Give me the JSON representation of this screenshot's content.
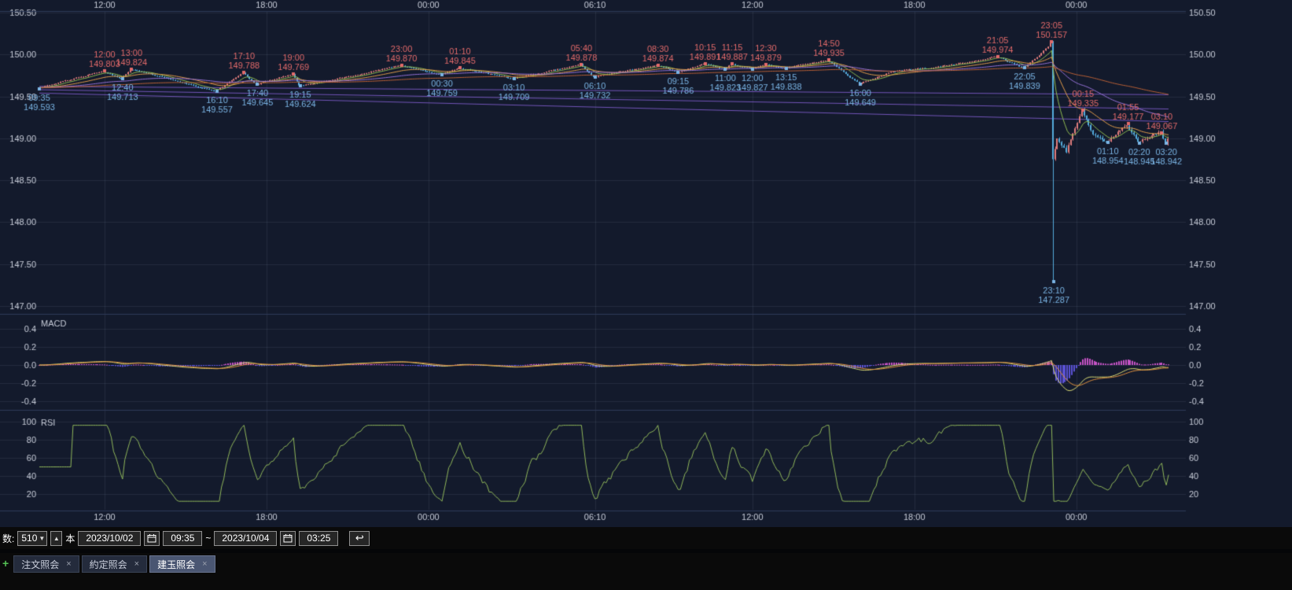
{
  "colors": {
    "bg": "#131a2c",
    "grid": "rgba(180,195,230,0.10)",
    "separator": "#2e3a58",
    "axis_text": "#c7ccd8",
    "up": "#e07c7c",
    "down": "#55acdd",
    "ann_high": "#e26a6a",
    "ann_low": "#7ab4e4",
    "ma_fast": "#8fba51",
    "ma_mid": "#e09b4a",
    "ma_slow": "#9571d6",
    "ma_long": "#b85f35",
    "trend": "#8a63db",
    "macd_line": "#d8d874",
    "macd_signal": "#e0913f",
    "hist_pos": "#c653c6",
    "hist_neg": "#5b52d6",
    "rsi_line": "#8fb65a"
  },
  "axes": {
    "time_labels": [
      {
        "label": "12:00",
        "t": 145
      },
      {
        "label": "18:00",
        "t": 505
      },
      {
        "label": "00:00",
        "t": 865
      },
      {
        "label": "06:10",
        "t": 1235
      },
      {
        "label": "12:00",
        "t": 1585
      },
      {
        "label": "18:00",
        "t": 1945
      },
      {
        "label": "00:00",
        "t": 2305
      }
    ],
    "price_ticks": [
      150.5,
      150.0,
      149.5,
      149.0,
      148.5,
      148.0,
      147.5,
      147.0
    ],
    "macd_ticks": [
      0.4,
      0.2,
      0.0,
      -0.2,
      -0.4
    ],
    "rsi_ticks": [
      100,
      80,
      60,
      40,
      20
    ]
  },
  "panels": {
    "macd_label": "MACD",
    "rsi_label": "RSI"
  },
  "chart_data": {
    "type": "candlestick",
    "interval_minutes": 5,
    "bars_count": 510,
    "x_domain_minutes": [
      0,
      2510
    ],
    "time_span": {
      "from": "2023/10/02 09:35",
      "to": "2023/10/04 03:25"
    },
    "price_panel": {
      "ylim": [
        146.93,
        150.57
      ],
      "close_anchors": [
        [
          0,
          149.6
        ],
        [
          145,
          149.803
        ],
        [
          185,
          149.713
        ],
        [
          205,
          149.824
        ],
        [
          300,
          149.7
        ],
        [
          395,
          149.557
        ],
        [
          455,
          149.788
        ],
        [
          485,
          149.645
        ],
        [
          565,
          149.769
        ],
        [
          580,
          149.624
        ],
        [
          700,
          149.75
        ],
        [
          805,
          149.87
        ],
        [
          895,
          149.759
        ],
        [
          935,
          149.845
        ],
        [
          1055,
          149.709
        ],
        [
          1205,
          149.878
        ],
        [
          1235,
          149.732
        ],
        [
          1375,
          149.874
        ],
        [
          1420,
          149.786
        ],
        [
          1480,
          149.891
        ],
        [
          1525,
          149.823
        ],
        [
          1540,
          149.887
        ],
        [
          1585,
          149.827
        ],
        [
          1615,
          149.879
        ],
        [
          1660,
          149.838
        ],
        [
          1755,
          149.935
        ],
        [
          1825,
          149.649
        ],
        [
          1900,
          149.8
        ],
        [
          2000,
          149.85
        ],
        [
          2130,
          149.974
        ],
        [
          2190,
          149.839
        ],
        [
          2245,
          150.09
        ],
        [
          2250,
          150.157
        ],
        [
          2255,
          148.75
        ],
        [
          2265,
          149.02
        ],
        [
          2285,
          148.85
        ],
        [
          2320,
          149.335
        ],
        [
          2345,
          149.05
        ],
        [
          2375,
          148.954
        ],
        [
          2420,
          149.177
        ],
        [
          2445,
          148.945
        ],
        [
          2470,
          149.02
        ],
        [
          2495,
          149.067
        ],
        [
          2505,
          148.942
        ],
        [
          2510,
          148.99
        ]
      ],
      "swing_highs": [
        {
          "time": "12:00",
          "t": 145,
          "price": 149.803
        },
        {
          "time": "13:00",
          "t": 205,
          "price": 149.824
        },
        {
          "time": "17:10",
          "t": 455,
          "price": 149.788
        },
        {
          "time": "19:00",
          "t": 565,
          "price": 149.769
        },
        {
          "time": "23:00",
          "t": 805,
          "price": 149.87
        },
        {
          "time": "01:10",
          "t": 935,
          "price": 149.845
        },
        {
          "time": "05:40",
          "t": 1205,
          "price": 149.878
        },
        {
          "time": "08:30",
          "t": 1375,
          "price": 149.874
        },
        {
          "time": "10:15",
          "t": 1480,
          "price": 149.891
        },
        {
          "time": "11:15",
          "t": 1540,
          "price": 149.887
        },
        {
          "time": "12:30",
          "t": 1615,
          "price": 149.879
        },
        {
          "time": "14:50",
          "t": 1755,
          "price": 149.935
        },
        {
          "time": "21:05",
          "t": 2130,
          "price": 149.974
        },
        {
          "time": "23:05",
          "t": 2250,
          "price": 150.157
        },
        {
          "time": "00:15",
          "t": 2320,
          "price": 149.335
        },
        {
          "time": "01:55",
          "t": 2420,
          "price": 149.177
        },
        {
          "time": "03:10",
          "t": 2495,
          "price": 149.067
        }
      ],
      "swing_lows": [
        {
          "time": "09:35",
          "t": 0,
          "price": 149.593
        },
        {
          "time": "12:40",
          "t": 185,
          "price": 149.713
        },
        {
          "time": "16:10",
          "t": 395,
          "price": 149.557
        },
        {
          "time": "17:40",
          "t": 485,
          "price": 149.645
        },
        {
          "time": "19:15",
          "t": 580,
          "price": 149.624
        },
        {
          "time": "00:30",
          "t": 895,
          "price": 149.759
        },
        {
          "time": "03:10",
          "t": 1055,
          "price": 149.709
        },
        {
          "time": "06:10",
          "t": 1235,
          "price": 149.732
        },
        {
          "time": "09:15",
          "t": 1420,
          "price": 149.786
        },
        {
          "time": "11:00",
          "t": 1525,
          "price": 149.823
        },
        {
          "time": "12:00",
          "t": 1585,
          "price": 149.827
        },
        {
          "time": "13:15",
          "t": 1660,
          "price": 149.838
        },
        {
          "time": "16:00",
          "t": 1825,
          "price": 149.649
        },
        {
          "time": "22:05",
          "t": 2190,
          "price": 149.839
        },
        {
          "time": "23:10",
          "t": 2255,
          "price": 147.287
        },
        {
          "time": "01:10",
          "t": 2375,
          "price": 148.954
        },
        {
          "time": "02:20",
          "t": 2445,
          "price": 148.945
        },
        {
          "time": "03:20",
          "t": 2505,
          "price": 148.942
        }
      ],
      "trend_lines": [
        [
          0,
          149.62,
          2510,
          149.52
        ],
        [
          0,
          149.58,
          2510,
          149.35
        ],
        [
          0,
          149.54,
          2510,
          149.2
        ]
      ],
      "ma_periods": [
        8,
        25,
        75,
        200
      ]
    },
    "macd_panel": {
      "ylim": [
        -0.5,
        0.5
      ],
      "fast": 12,
      "slow": 26,
      "signal": 9
    },
    "rsi_panel": {
      "ylim": [
        8,
        104
      ],
      "period": 14
    }
  },
  "toolbar": {
    "count_label": "数:",
    "count_value": "510",
    "count_unit": "本",
    "date_from": "2023/10/02",
    "time_from": "09:35",
    "range_separator": "~",
    "date_to": "2023/10/04",
    "time_to": "03:25",
    "icons": {
      "dropdown": "▼",
      "spin_up": "▲",
      "revert": "↩"
    }
  },
  "tabs": {
    "new_glyph": "+",
    "close_glyph": "×",
    "active_index": 2,
    "items": [
      {
        "label": "注文照会"
      },
      {
        "label": "約定照会"
      },
      {
        "label": "建玉照会"
      }
    ]
  }
}
